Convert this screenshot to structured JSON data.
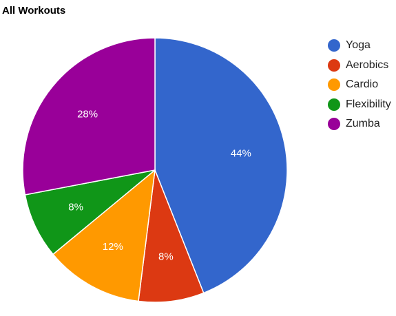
{
  "chart_data": {
    "type": "pie",
    "title": "All Workouts",
    "legend_position": "right",
    "slices": [
      {
        "label": "Yoga",
        "value": 44,
        "display": "44%",
        "color": "#3366cc"
      },
      {
        "label": "Aerobics",
        "value": 8,
        "display": "8%",
        "color": "#dc3912"
      },
      {
        "label": "Cardio",
        "value": 12,
        "display": "12%",
        "color": "#ff9900"
      },
      {
        "label": "Flexibility",
        "value": 8,
        "display": "8%",
        "color": "#109618"
      },
      {
        "label": "Zumba",
        "value": 28,
        "display": "28%",
        "color": "#990099"
      }
    ]
  }
}
